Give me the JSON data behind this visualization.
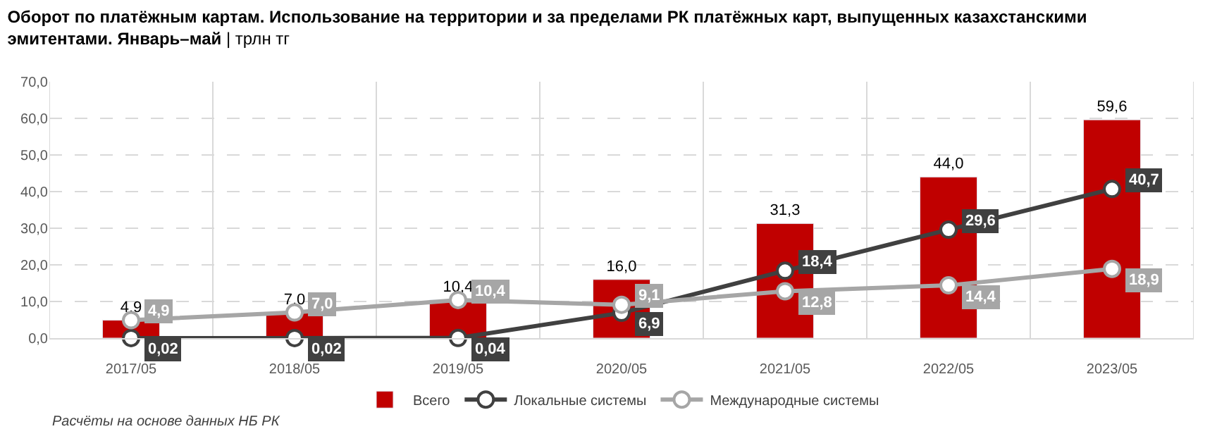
{
  "chart_data": {
    "type": "bar",
    "title": "Оборот по платёжным картам. Использование на территории и за пределами РК платёжных карт, выпущенных казахстанскими эмитентами. Январь–май",
    "subtitle": "| трлн тг",
    "categories": [
      "2017/05",
      "2018/05",
      "2019/05",
      "2020/05",
      "2021/05",
      "2022/05",
      "2023/05"
    ],
    "series": [
      {
        "name": "Всего",
        "type": "bar",
        "color": "#c00000",
        "values": [
          4.9,
          7.0,
          10.4,
          16.0,
          31.3,
          44.0,
          59.6
        ],
        "value_labels": [
          "4,9",
          "7,0",
          "10,4",
          "16,0",
          "31,3",
          "44,0",
          "59,6"
        ]
      },
      {
        "name": "Локальные системы",
        "type": "line",
        "color": "#404040",
        "marker": "circle",
        "values": [
          0.02,
          0.02,
          0.04,
          6.9,
          18.4,
          29.6,
          40.7
        ],
        "value_labels": [
          "0,02",
          "0,02",
          "0,04",
          "6,9",
          "18,4",
          "29,6",
          "40,7"
        ]
      },
      {
        "name": "Международные системы",
        "type": "line",
        "color": "#a6a6a6",
        "marker": "circle",
        "values": [
          4.9,
          7.0,
          10.4,
          9.1,
          12.8,
          14.4,
          18.9
        ],
        "value_labels": [
          "4,9",
          "7,0",
          "10,4",
          "9,1",
          "12,8",
          "14,4",
          "18,9"
        ]
      }
    ],
    "ylim": [
      0,
      70
    ],
    "yticks": [
      {
        "value": 0,
        "label": "0,0"
      },
      {
        "value": 10,
        "label": "10,0"
      },
      {
        "value": 20,
        "label": "20,0"
      },
      {
        "value": 30,
        "label": "30,0"
      },
      {
        "value": 40,
        "label": "40,0"
      },
      {
        "value": 50,
        "label": "50,0"
      },
      {
        "value": 60,
        "label": "60,0"
      },
      {
        "value": 70,
        "label": "70,0"
      }
    ],
    "grid": true,
    "legend": "bottom",
    "annotations": [
      "Расчёты на основе данных НБ РК"
    ]
  }
}
